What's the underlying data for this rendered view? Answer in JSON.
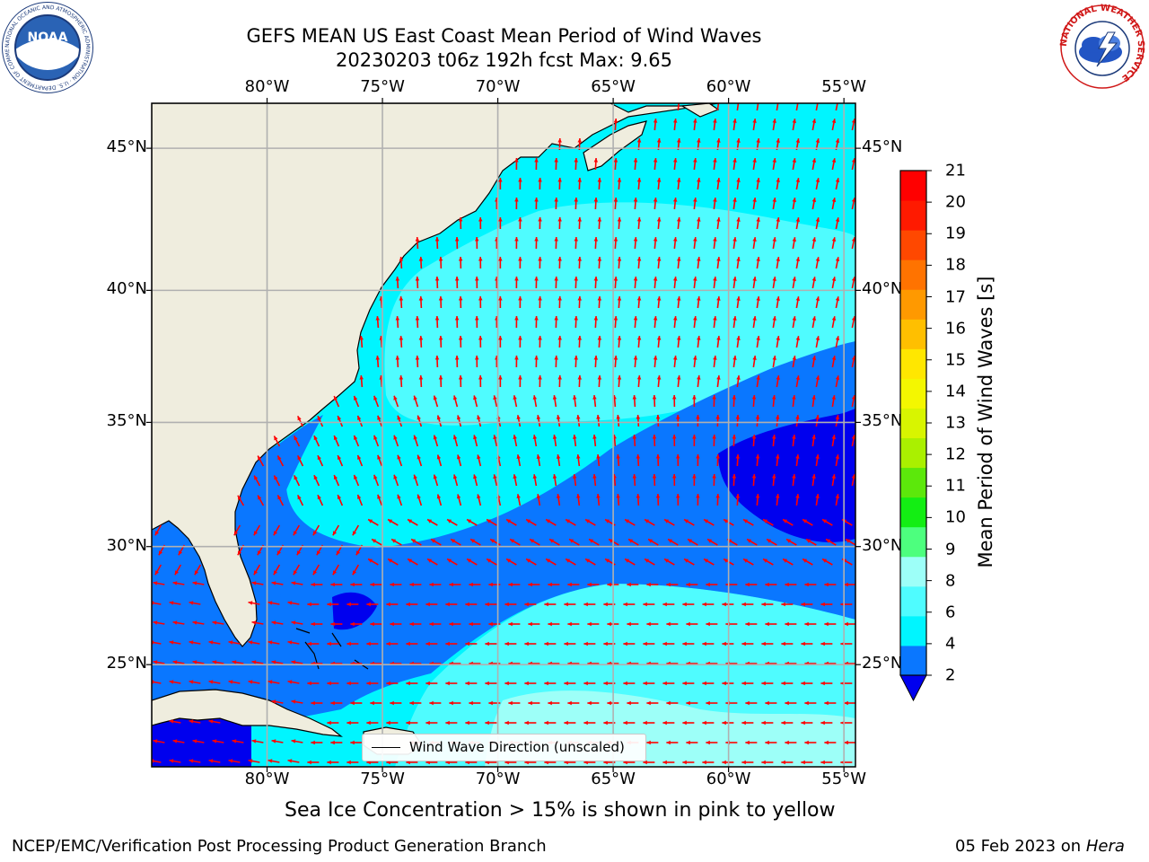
{
  "header": {
    "title_line1": "GEFS MEAN US East Coast Mean Period of Wind Waves",
    "title_line2": "20230203 t06z 192h fcst   Max: 9.65"
  },
  "logos": {
    "noa_text": "NOAA",
    "noaa_ring": "NATIONAL OCEANIC AND ATMOSPHERIC ADMINISTRATION · U.S. DEPARTMENT OF COMMERCE",
    "nws_ring": "NATIONAL WEATHER SERVICE"
  },
  "map": {
    "lon_labels": [
      "80°W",
      "75°W",
      "70°W",
      "65°W",
      "60°W",
      "55°W"
    ],
    "lat_labels": [
      "45°N",
      "40°N",
      "35°N",
      "30°N",
      "25°N"
    ],
    "lon_range": [
      -85,
      -54.5
    ],
    "lat_range": [
      20.5,
      46.5
    ],
    "colors": {
      "land": "#efedde",
      "grid": "#b0b0b0",
      "arrow": "#ff0000",
      "coast": "#000000"
    }
  },
  "legend": {
    "label": "Wind Wave Direction (unscaled)"
  },
  "colorbar": {
    "title": "Mean Period of Wind Waves [s]",
    "ticks": [
      "2",
      "4",
      "6",
      "8",
      "9",
      "10",
      "11",
      "12",
      "13",
      "14",
      "15",
      "16",
      "17",
      "18",
      "19",
      "20",
      "21"
    ],
    "colors": [
      "#0000ee",
      "#0a77ff",
      "#00f5ff",
      "#4ffcff",
      "#9dfff8",
      "#4dff7e",
      "#13ee13",
      "#5ce80b",
      "#aaf000",
      "#d8f500",
      "#f4f700",
      "#ffe700",
      "#ffbf00",
      "#ff9900",
      "#ff7300",
      "#ff4800",
      "#ff1a00",
      "#ff0000"
    ]
  },
  "notes": {
    "sea_ice": "Sea Ice Concentration > 15% is shown in pink to yellow",
    "credit": "NCEP/EMC/Verification Post Processing Product Generation Branch",
    "date": "05 Feb 2023 on ",
    "machine": "Hera"
  }
}
